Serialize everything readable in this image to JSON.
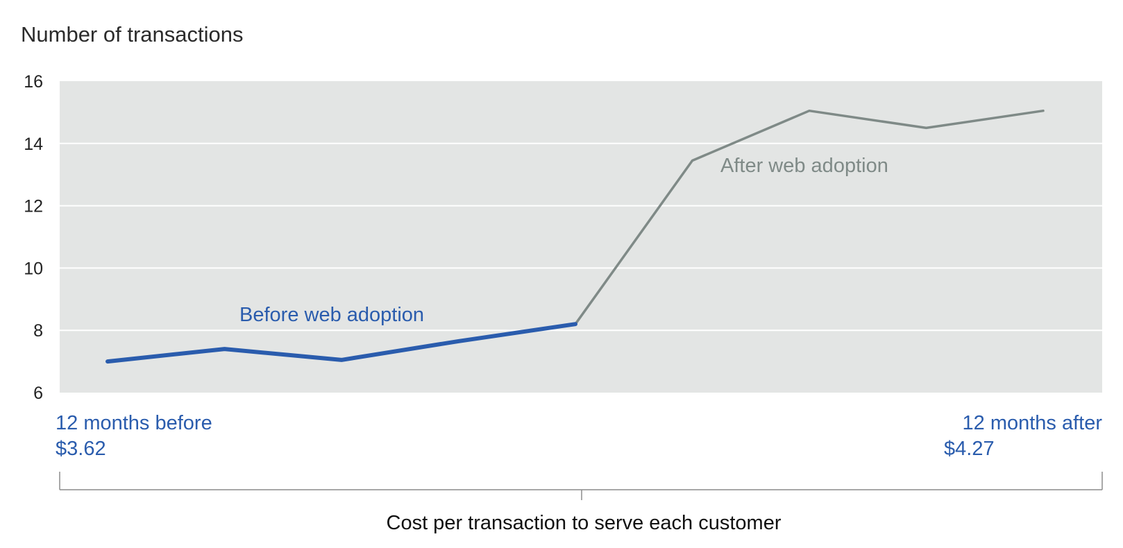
{
  "chart_data": {
    "type": "line",
    "title": "Number of transactions",
    "xlabel": "Cost per transaction to serve each customer",
    "ylabel": "",
    "ylim": [
      6,
      16
    ],
    "yticks": [
      6,
      8,
      10,
      12,
      14,
      16
    ],
    "grid": true,
    "series": [
      {
        "name": "Before web adoption",
        "color": "#2a5cad",
        "x": [
          1,
          2,
          3,
          4,
          5
        ],
        "values": [
          7.0,
          7.4,
          7.05,
          7.65,
          8.2
        ]
      },
      {
        "name": "After web adoption",
        "color": "#7f8a87",
        "x": [
          5,
          6,
          7,
          8,
          9
        ],
        "values": [
          8.2,
          13.45,
          15.05,
          14.5,
          15.05
        ]
      }
    ],
    "end_labels": {
      "left": {
        "line1": "12 months before",
        "line2": "$3.62"
      },
      "right": {
        "line1": "12 months after",
        "line2": "$4.27"
      }
    },
    "colors": {
      "plot_background": "#e3e5e4",
      "gridline": "#ffffff",
      "bracket": "#8c8c8c"
    }
  }
}
